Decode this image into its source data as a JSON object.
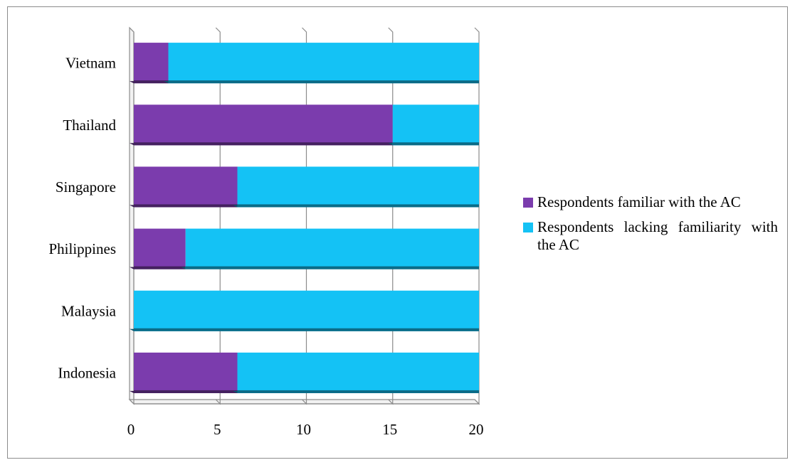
{
  "chart_data": {
    "type": "bar",
    "orientation": "horizontal",
    "stacked": true,
    "categories": [
      "Vietnam",
      "Thailand",
      "Singapore",
      "Philippines",
      "Malaysia",
      "Indonesia"
    ],
    "series": [
      {
        "name": "Respondents familiar with the AC",
        "values": [
          2,
          15,
          6,
          3,
          0,
          6
        ],
        "color": "#7b3cad"
      },
      {
        "name": "Respondents lacking familiarity with the AC",
        "values": [
          18,
          5,
          14,
          17,
          20,
          14
        ],
        "color": "#14c2f5"
      }
    ],
    "xlim": [
      0,
      20
    ],
    "xticks": [
      "0",
      "5",
      "10",
      "15",
      "20"
    ],
    "xlabel": "",
    "ylabel": "",
    "grid": true,
    "legend_position": "right"
  }
}
